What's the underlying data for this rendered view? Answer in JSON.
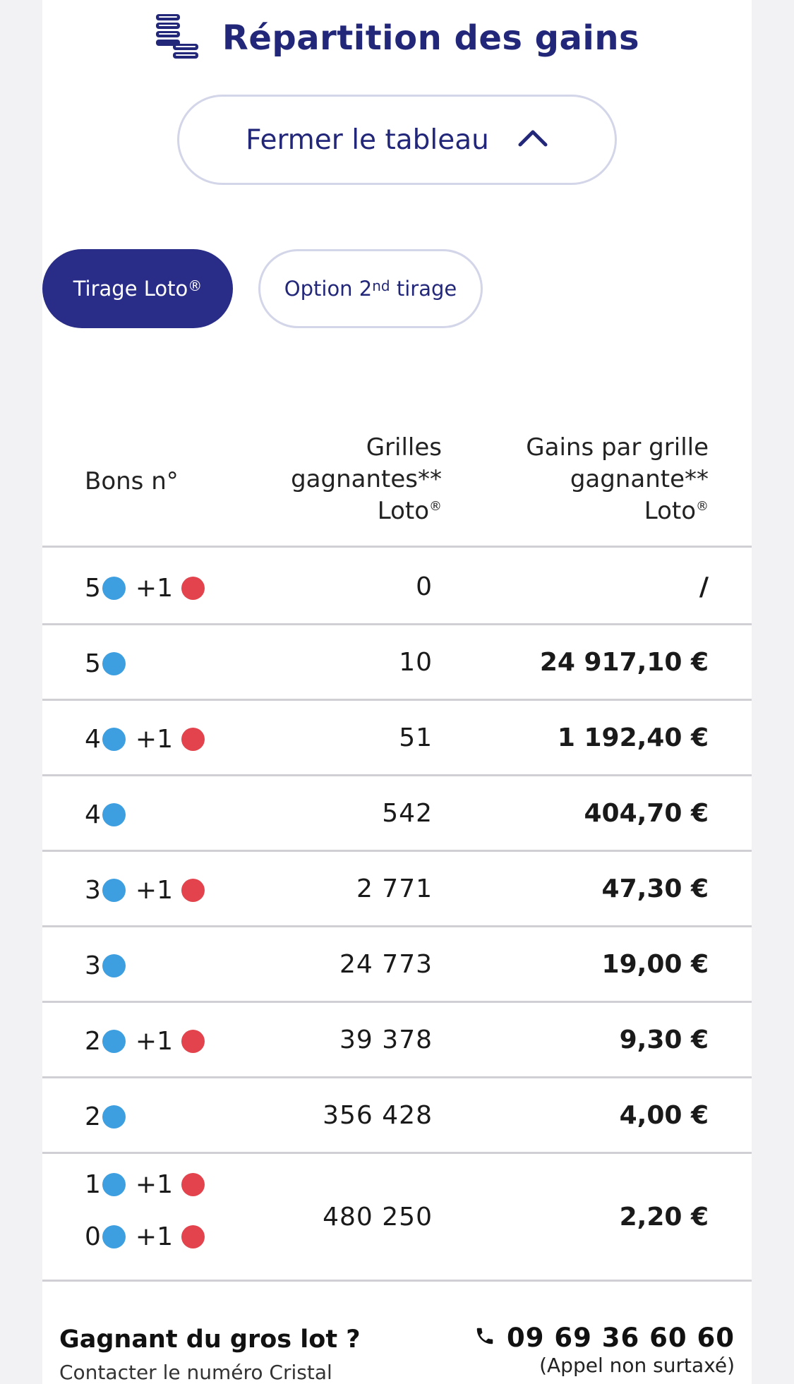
{
  "header": {
    "title": "Répartition des gains",
    "icon": "coin-stack-icon"
  },
  "toggle": {
    "label": "Fermer le tableau",
    "icon": "chevron-up-icon"
  },
  "tabs": [
    {
      "label": "Tirage Loto",
      "sup": "®",
      "active": true
    },
    {
      "label_before": "Option 2",
      "sup": "nd",
      "label_after": " tirage",
      "active": false
    }
  ],
  "table": {
    "headers": {
      "bons": "Bons n°",
      "grilles": [
        "Grilles",
        "gagnantes**",
        "Loto"
      ],
      "grilles_sup": "®",
      "gains": [
        "Gains par grille",
        "gagnante**",
        "Loto"
      ],
      "gains_sup": "®"
    },
    "rows": [
      {
        "combos": [
          {
            "blue": "5",
            "red": "1"
          }
        ],
        "count": "0",
        "gain": "/"
      },
      {
        "combos": [
          {
            "blue": "5",
            "red": null
          }
        ],
        "count": "10",
        "gain": "24 917,10 €"
      },
      {
        "combos": [
          {
            "blue": "4",
            "red": "1"
          }
        ],
        "count": "51",
        "gain": "1 192,40 €"
      },
      {
        "combos": [
          {
            "blue": "4",
            "red": null
          }
        ],
        "count": "542",
        "gain": "404,70 €"
      },
      {
        "combos": [
          {
            "blue": "3",
            "red": "1"
          }
        ],
        "count": "2 771",
        "gain": "47,30 €"
      },
      {
        "combos": [
          {
            "blue": "3",
            "red": null
          }
        ],
        "count": "24 773",
        "gain": "19,00 €"
      },
      {
        "combos": [
          {
            "blue": "2",
            "red": "1"
          }
        ],
        "count": "39 378",
        "gain": "9,30 €"
      },
      {
        "combos": [
          {
            "blue": "2",
            "red": null
          }
        ],
        "count": "356 428",
        "gain": "4,00 €"
      },
      {
        "combos": [
          {
            "blue": "1",
            "red": "1"
          },
          {
            "blue": "0",
            "red": "1"
          }
        ],
        "count": "480 250",
        "gain": "2,20 €"
      }
    ],
    "colors": {
      "blue_ball": "#3d9ee0",
      "red_ball": "#e2434c"
    }
  },
  "footer": {
    "winner_title": "Gagnant du gros lot ?",
    "winner_sub": "Contacter le numéro Cristal",
    "phone_icon": "phone-icon",
    "phone": "09 69 36 60 60",
    "phone_note": "(Appel non surtaxé)"
  },
  "colors": {
    "brand": "#23277a",
    "active_tab": "#2a2d87"
  }
}
